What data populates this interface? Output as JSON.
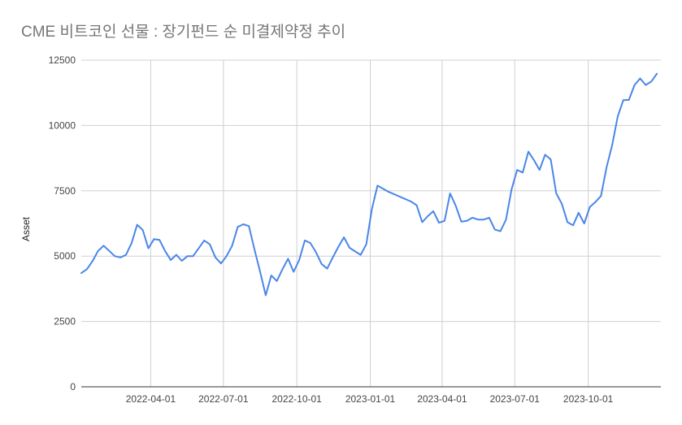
{
  "chart_data": {
    "type": "line",
    "title": "CME 비트코인 선물 : 장기펀드 순 미결제약정 추이",
    "xlabel": "",
    "ylabel": "Asset",
    "ylim": [
      0,
      12500
    ],
    "yticks": [
      0,
      2500,
      5000,
      7500,
      10000,
      12500
    ],
    "xlim": [
      "2022-01-04",
      "2023-12-31"
    ],
    "xticks": [
      "2022-04-01",
      "2022-07-01",
      "2022-10-01",
      "2023-01-01",
      "2023-04-01",
      "2023-07-01",
      "2023-10-01"
    ],
    "grid": true,
    "legend": "none",
    "color": "#4a86e8",
    "series": [
      {
        "x": [
          "2022-01-04",
          "2022-01-11",
          "2022-01-18",
          "2022-01-25",
          "2022-02-01",
          "2022-02-08",
          "2022-02-15",
          "2022-02-22",
          "2022-03-01",
          "2022-03-08",
          "2022-03-15",
          "2022-03-22",
          "2022-03-29",
          "2022-04-05",
          "2022-04-12",
          "2022-04-19",
          "2022-04-26",
          "2022-05-03",
          "2022-05-10",
          "2022-05-17",
          "2022-05-24",
          "2022-05-31",
          "2022-06-07",
          "2022-06-14",
          "2022-06-21",
          "2022-06-28",
          "2022-07-05",
          "2022-07-12",
          "2022-07-19",
          "2022-07-26",
          "2022-08-02",
          "2022-08-09",
          "2022-08-16",
          "2022-08-23",
          "2022-08-30",
          "2022-09-06",
          "2022-09-13",
          "2022-09-20",
          "2022-09-27",
          "2022-10-04",
          "2022-10-11",
          "2022-10-18",
          "2022-10-25",
          "2022-11-01",
          "2022-11-08",
          "2022-11-15",
          "2022-11-22",
          "2022-11-29",
          "2022-12-06",
          "2022-12-13",
          "2022-12-20",
          "2022-12-27",
          "2023-01-03",
          "2023-01-10",
          "2023-01-17",
          "2023-01-24",
          "2023-02-21",
          "2023-02-28",
          "2023-03-07",
          "2023-03-14",
          "2023-03-21",
          "2023-03-28",
          "2023-04-04",
          "2023-04-11",
          "2023-04-18",
          "2023-04-25",
          "2023-05-02",
          "2023-05-09",
          "2023-05-16",
          "2023-05-23",
          "2023-05-30",
          "2023-06-06",
          "2023-06-13",
          "2023-06-20",
          "2023-06-27",
          "2023-07-04",
          "2023-07-11",
          "2023-07-18",
          "2023-07-25",
          "2023-08-01",
          "2023-08-08",
          "2023-08-15",
          "2023-08-22",
          "2023-08-29",
          "2023-09-05",
          "2023-09-12",
          "2023-09-19",
          "2023-09-26",
          "2023-10-03",
          "2023-10-10",
          "2023-10-17",
          "2023-10-24",
          "2023-10-31",
          "2023-11-07",
          "2023-11-14",
          "2023-11-21",
          "2023-11-28",
          "2023-12-05",
          "2023-12-12",
          "2023-12-19",
          "2023-12-26"
        ],
        "values": [
          4350,
          4500,
          4800,
          5200,
          5400,
          5200,
          5000,
          4950,
          5050,
          5500,
          6200,
          6000,
          5300,
          5650,
          5620,
          5200,
          4850,
          5050,
          4820,
          5000,
          5000,
          5300,
          5600,
          5450,
          4950,
          4720,
          5000,
          5400,
          6120,
          6220,
          6150,
          5250,
          4400,
          3500,
          4260,
          4050,
          4500,
          4900,
          4400,
          4850,
          5600,
          5500,
          5150,
          4700,
          4520,
          4950,
          5350,
          5720,
          5320,
          5180,
          5050,
          5450,
          6800,
          7700,
          7580,
          7460,
          7090,
          6950,
          6300,
          6530,
          6720,
          6280,
          6350,
          7400,
          6930,
          6320,
          6350,
          6470,
          6400,
          6400,
          6470,
          6020,
          5950,
          6400,
          7550,
          8300,
          8200,
          9000,
          8680,
          8300,
          8880,
          8700,
          7400,
          7000,
          6300,
          6180,
          6660,
          6250,
          6880,
          7070,
          7300,
          8400,
          9250,
          10350,
          10970,
          10980,
          11550,
          11800,
          11550,
          11680,
          11980
        ]
      }
    ]
  }
}
